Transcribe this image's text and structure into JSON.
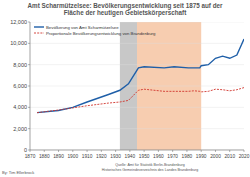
{
  "chart_data": {
    "type": "line",
    "title": "Amt Scharmützelsee: Bevölkerungsentwicklung seit 1875 auf der",
    "subtitle": "Fläche der heutigen Gebietskörperschaft",
    "series": [
      {
        "name": "Bevölkerung von Amt Scharmützelsee",
        "color": "#1f5fa8",
        "line_style": "solid",
        "x": [
          1875,
          1890,
          1900,
          1910,
          1925,
          1933,
          1939,
          1946,
          1950,
          1964,
          1971,
          1981,
          1985,
          1989,
          1990,
          1995,
          2000,
          2005,
          2010,
          2015,
          2020
        ],
        "values": [
          3500,
          3700,
          4000,
          4500,
          5200,
          5600,
          6200,
          7700,
          7800,
          7700,
          7800,
          7700,
          7700,
          7700,
          7900,
          8000,
          8600,
          8800,
          8600,
          8900,
          10400
        ]
      },
      {
        "name": "Proportionale Bevölkerungsentwicklung von Brandenburg",
        "color": "#d0342c",
        "line_style": "dashed",
        "x": [
          1875,
          1890,
          1900,
          1910,
          1925,
          1933,
          1939,
          1946,
          1950,
          1964,
          1971,
          1981,
          1985,
          1989,
          1990,
          1995,
          2000,
          2005,
          2010,
          2015,
          2020
        ],
        "values": [
          3500,
          3750,
          3950,
          4150,
          4400,
          4500,
          4650,
          5600,
          5700,
          5500,
          5500,
          5500,
          5550,
          5500,
          5450,
          5500,
          5700,
          5650,
          5550,
          5650,
          5850
        ]
      }
    ],
    "shaded_periods": [
      {
        "x": [
          1933,
          1945
        ],
        "color": "#c8c8c8"
      },
      {
        "x": [
          1945,
          1990
        ],
        "color": "#f7cdb0"
      }
    ],
    "xlim": [
      1870,
      2020
    ],
    "xticks": [
      1870,
      1880,
      1890,
      1900,
      1910,
      1920,
      1930,
      1940,
      1950,
      1960,
      1970,
      1980,
      1990,
      2000,
      2010,
      2020
    ],
    "ylim": [
      0,
      12000
    ],
    "yticks": [
      0,
      {
        "value": 2000,
        "label": "2,000"
      },
      {
        "value": 4000,
        "label": "4,000"
      },
      {
        "value": 6000,
        "label": "6,000"
      },
      {
        "value": 8000,
        "label": "8,000"
      },
      {
        "value": 10000,
        "label": "10,000"
      },
      {
        "value": 12000,
        "label": "12,000"
      }
    ],
    "grid": true,
    "legend": "top-left",
    "annotations": [
      "By: Tim Ellerbrock",
      "Quelle: Amt für Statistik Berlin-Brandenburg",
      "Historisches Gemeindeverzeichnis des Landes Brandenburg"
    ]
  }
}
